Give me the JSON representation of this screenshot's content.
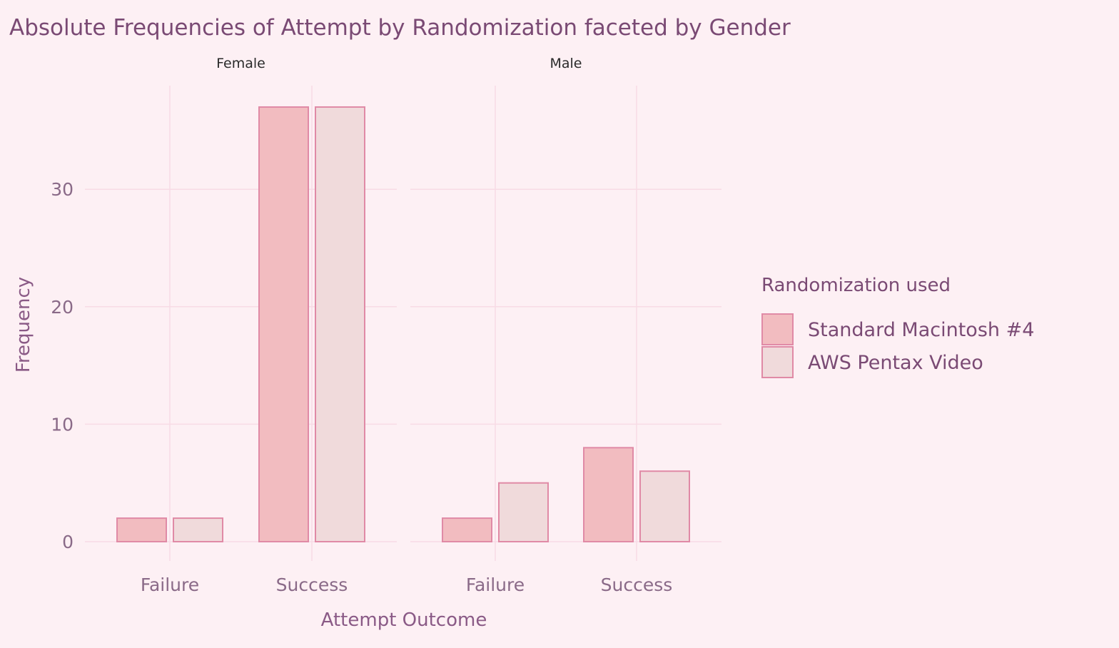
{
  "chart_data": {
    "type": "bar",
    "title": "Absolute Frequencies of Attempt by Randomization faceted by Gender",
    "xlabel": "Attempt Outcome",
    "ylabel": "Frequency",
    "ylim": [
      0,
      39
    ],
    "y_ticks": [
      0,
      10,
      20,
      30
    ],
    "categories": [
      "Failure",
      "Success"
    ],
    "legend": {
      "title": "Randomization used",
      "position": "right"
    },
    "series": [
      {
        "name": "Standard Macintosh #4",
        "color": "#f2bcc0"
      },
      {
        "name": "AWS Pentax Video",
        "color": "#f0dadb"
      }
    ],
    "facets": [
      {
        "label": "Female",
        "values": [
          [
            2,
            37
          ],
          [
            2,
            37
          ]
        ]
      },
      {
        "label": "Male",
        "values": [
          [
            2,
            8
          ],
          [
            5,
            6
          ]
        ]
      }
    ],
    "bar_stroke": "#e08aa6",
    "grid": true
  }
}
